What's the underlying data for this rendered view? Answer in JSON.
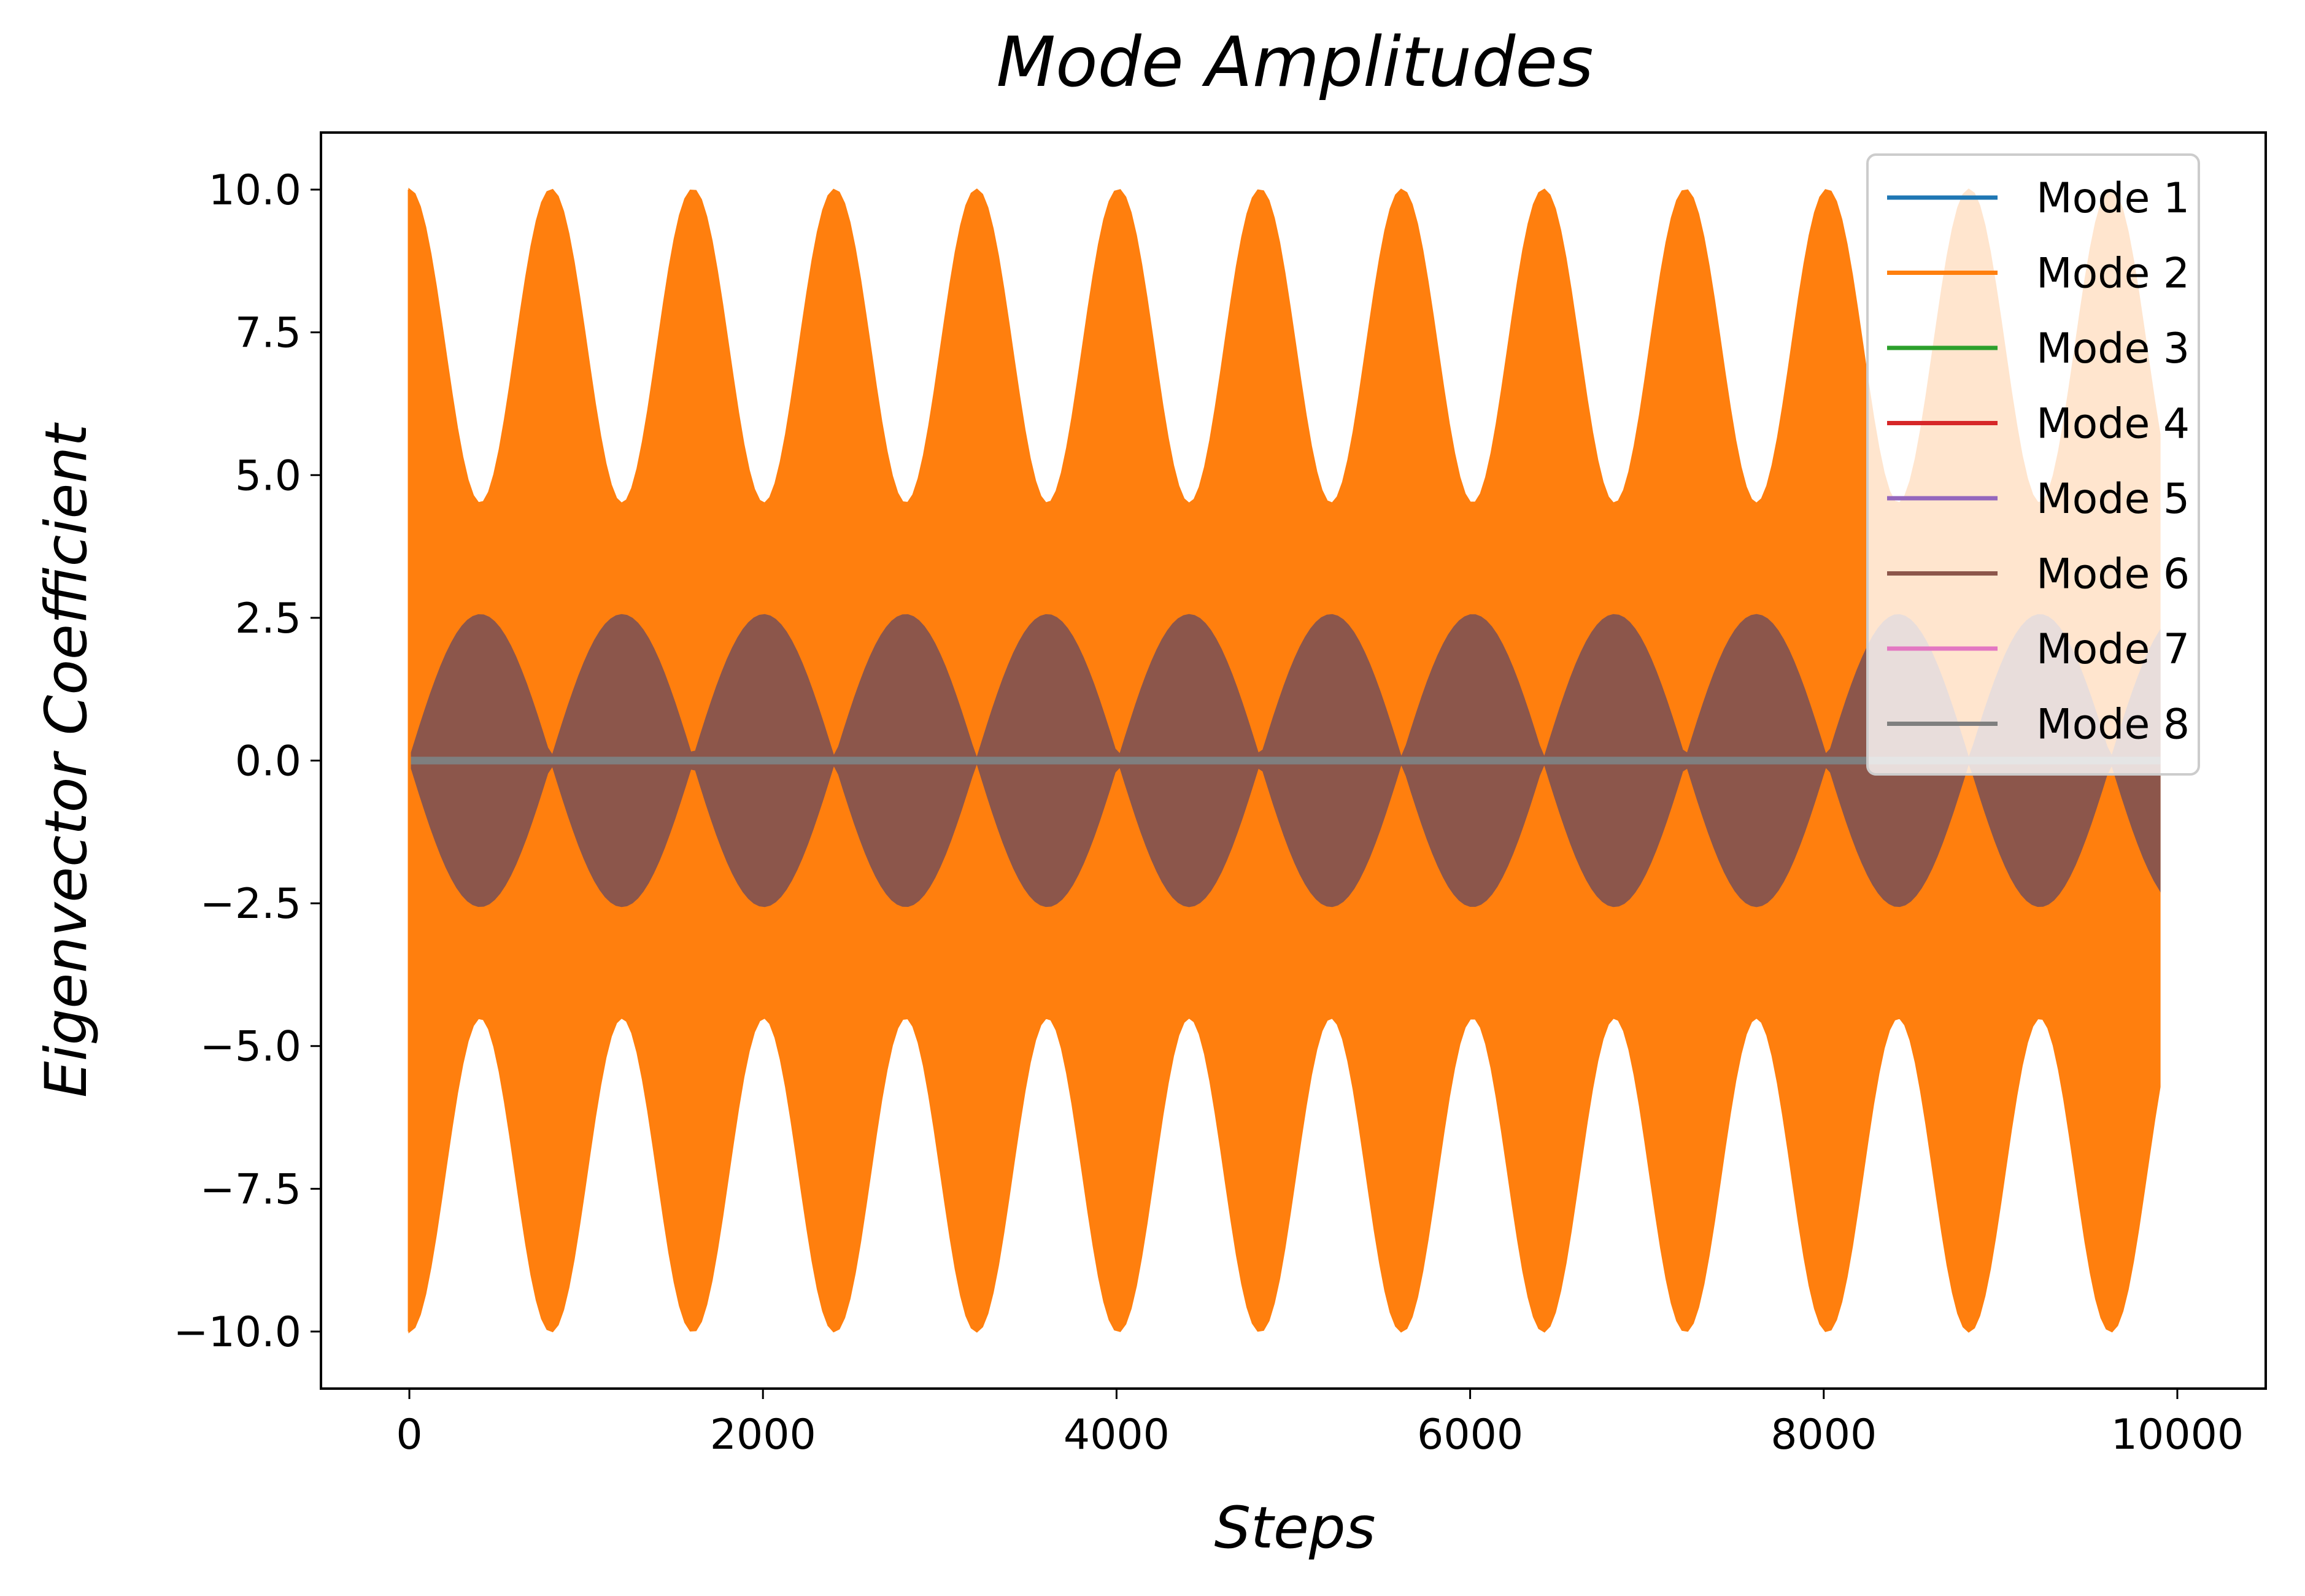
{
  "chart_data": {
    "type": "line",
    "title": "Mode Amplitudes",
    "xlabel": "Steps",
    "ylabel": "Eigenvector Coefficient",
    "xlim": [
      -500,
      10500
    ],
    "ylim": [
      -11.0,
      11.0
    ],
    "x_ticks": [
      0,
      2000,
      4000,
      6000,
      8000,
      10000
    ],
    "x_tick_labels": [
      "0",
      "2000",
      "4000",
      "6000",
      "8000",
      "10000"
    ],
    "y_ticks": [
      10.0,
      7.5,
      5.0,
      2.5,
      0.0,
      -2.5,
      -5.0,
      -7.5,
      -10.0
    ],
    "y_tick_labels": [
      "10.0",
      "7.5",
      "5.0",
      "2.5",
      "0.0",
      "−2.5",
      "−5.0",
      "−7.5",
      "−10.0"
    ],
    "grid": false,
    "legend_position": "top-right",
    "x_range": [
      0,
      9920
    ],
    "series": [
      {
        "name": "Mode 1",
        "color": "#1f77b4",
        "envelope_min": 0.0,
        "envelope_max": 0.0,
        "beat_period_steps": 0
      },
      {
        "name": "Mode 2",
        "color": "#ff7f0e",
        "envelope_min": 4.5,
        "envelope_max": 10.0,
        "beat_period_steps": 802
      },
      {
        "name": "Mode 3",
        "color": "#2ca02c",
        "envelope_min": 0.0,
        "envelope_max": 0.0,
        "beat_period_steps": 0
      },
      {
        "name": "Mode 4",
        "color": "#d62728",
        "envelope_min": 0.0,
        "envelope_max": 0.0,
        "beat_period_steps": 0
      },
      {
        "name": "Mode 5",
        "color": "#9467bd",
        "envelope_min": 0.0,
        "envelope_max": 0.0,
        "beat_period_steps": 0
      },
      {
        "name": "Mode 6",
        "color": "#8c564b",
        "envelope_min": 0.0,
        "envelope_max": 2.55,
        "beat_period_steps": 802
      },
      {
        "name": "Mode 7",
        "color": "#e377c2",
        "envelope_min": 0.0,
        "envelope_max": 0.0,
        "beat_period_steps": 0
      },
      {
        "name": "Mode 8",
        "color": "#7f7f7f",
        "envelope_min": 0.0,
        "envelope_max": 0.05,
        "beat_period_steps": 0
      }
    ]
  }
}
